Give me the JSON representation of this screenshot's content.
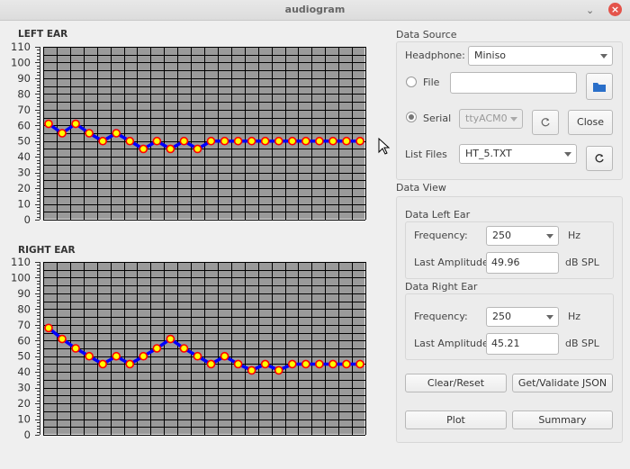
{
  "window": {
    "title": "audiogram"
  },
  "left_plot": {
    "title": "LEFT EAR"
  },
  "right_plot": {
    "title": "RIGHT EAR"
  },
  "chart_data": [
    {
      "type": "line",
      "title": "LEFT EAR",
      "ylim": [
        0,
        110
      ],
      "yticks": [
        "0",
        "10",
        "20",
        "30",
        "40",
        "50",
        "60",
        "70",
        "80",
        "90",
        "100",
        "110"
      ],
      "grid": true,
      "series": [
        {
          "values": [
            61,
            55,
            61,
            55,
            50,
            55,
            50,
            45,
            50,
            45,
            50,
            45,
            50,
            50,
            50,
            50,
            50,
            50,
            50,
            50,
            50,
            50,
            50,
            50
          ]
        }
      ]
    },
    {
      "type": "line",
      "title": "RIGHT EAR",
      "ylim": [
        0,
        110
      ],
      "yticks": [
        "0",
        "10",
        "20",
        "30",
        "40",
        "50",
        "60",
        "70",
        "80",
        "90",
        "100",
        "110"
      ],
      "grid": true,
      "series": [
        {
          "values": [
            68,
            61,
            55,
            50,
            45,
            50,
            45,
            50,
            55,
            61,
            55,
            50,
            45,
            50,
            45,
            41,
            45,
            41,
            45,
            45,
            45,
            45,
            45,
            45
          ]
        }
      ]
    }
  ],
  "data_source": {
    "title": "Data Source",
    "headphone_label": "Headphone:",
    "headphone_value": "Miniso",
    "file_label": "File",
    "file_value": "",
    "serial_label": "Serial",
    "serial_port": "ttyACM0",
    "close_label": "Close",
    "list_files_label": "List Files",
    "list_files_value": "HT_5.TXT"
  },
  "data_view": {
    "title": "Data View",
    "left": {
      "title": "Data Left Ear",
      "frequency_label": "Frequency:",
      "frequency_value": "250",
      "frequency_unit": "Hz",
      "amplitude_label": "Last Amplitude:",
      "amplitude_value": "49.96",
      "amplitude_unit": "dB SPL"
    },
    "right": {
      "title": "Data Right Ear",
      "frequency_label": "Frequency:",
      "frequency_value": "250",
      "frequency_unit": "Hz",
      "amplitude_label": "Last Amplitude:",
      "amplitude_value": "45.21",
      "amplitude_unit": "dB SPL"
    },
    "clear_label": "Clear/Reset",
    "json_label": "Get/Validate JSON",
    "plot_label": "Plot",
    "summary_label": "Summary"
  },
  "icons": {
    "folder": "folder-icon",
    "refresh": "refresh-icon",
    "cursor": "mouse-cursor-icon"
  },
  "colors": {
    "plot_bg": "#9a9a9a",
    "line": "#0000ff",
    "marker_fill": "#ffff00",
    "marker_edge": "#ff0000",
    "close_button": "#e4534a",
    "folder": "#2a6fc9"
  }
}
